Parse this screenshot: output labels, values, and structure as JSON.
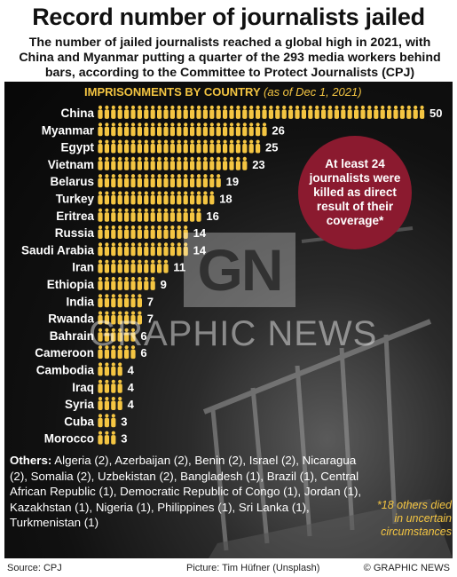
{
  "title": "Record number of journalists jailed",
  "subtitle": "The number of jailed journalists reached a global high in 2021, with China and Myanmar putting a quarter of the 293 media workers behind bars, according to the Committee to Protect Journalists (CPJ)",
  "colors": {
    "accent": "#f4c542",
    "killed_circle": "#8b1a2f",
    "panel": "#0d0d0d"
  },
  "chart_data": {
    "type": "bar",
    "title": "IMPRISONMENTS BY COUNTRY",
    "subtitle": "(as of Dec 1, 2021)",
    "categories": [
      "China",
      "Myanmar",
      "Egypt",
      "Vietnam",
      "Belarus",
      "Turkey",
      "Eritrea",
      "Russia",
      "Saudi Arabia",
      "Iran",
      "Ethiopia",
      "India",
      "Rwanda",
      "Bahrain",
      "Cameroon",
      "Cambodia",
      "Iraq",
      "Syria",
      "Cuba",
      "Morocco"
    ],
    "values": [
      50,
      26,
      25,
      23,
      19,
      18,
      16,
      14,
      14,
      11,
      9,
      7,
      7,
      6,
      6,
      4,
      4,
      4,
      3,
      3
    ],
    "icon": "person-icon"
  },
  "callout": {
    "text": "At least 24 journalists were killed as direct result of their coverage*"
  },
  "others": {
    "label": "Others:",
    "text": "Algeria (2), Azerbaijan (2), Benin (2), Israel (2), Nicaragua (2), Somalia (2), Uzbekistan (2), Bangladesh (1), Brazil (1), Central African Republic (1), Democratic Republic of Congo (1), Jordan (1), Kazakhstan (1), Nigeria (1), Philippines (1), Sri Lanka (1), Turkmenistan (1)"
  },
  "note": "*18 others died in uncertain circumstances",
  "watermark": "GRAPHIC NEWS",
  "logo": "GN",
  "footer": {
    "source": "Source: CPJ",
    "picture": "Picture: Tim Hüfner (Unsplash)",
    "copyright": "© GRAPHIC NEWS"
  }
}
